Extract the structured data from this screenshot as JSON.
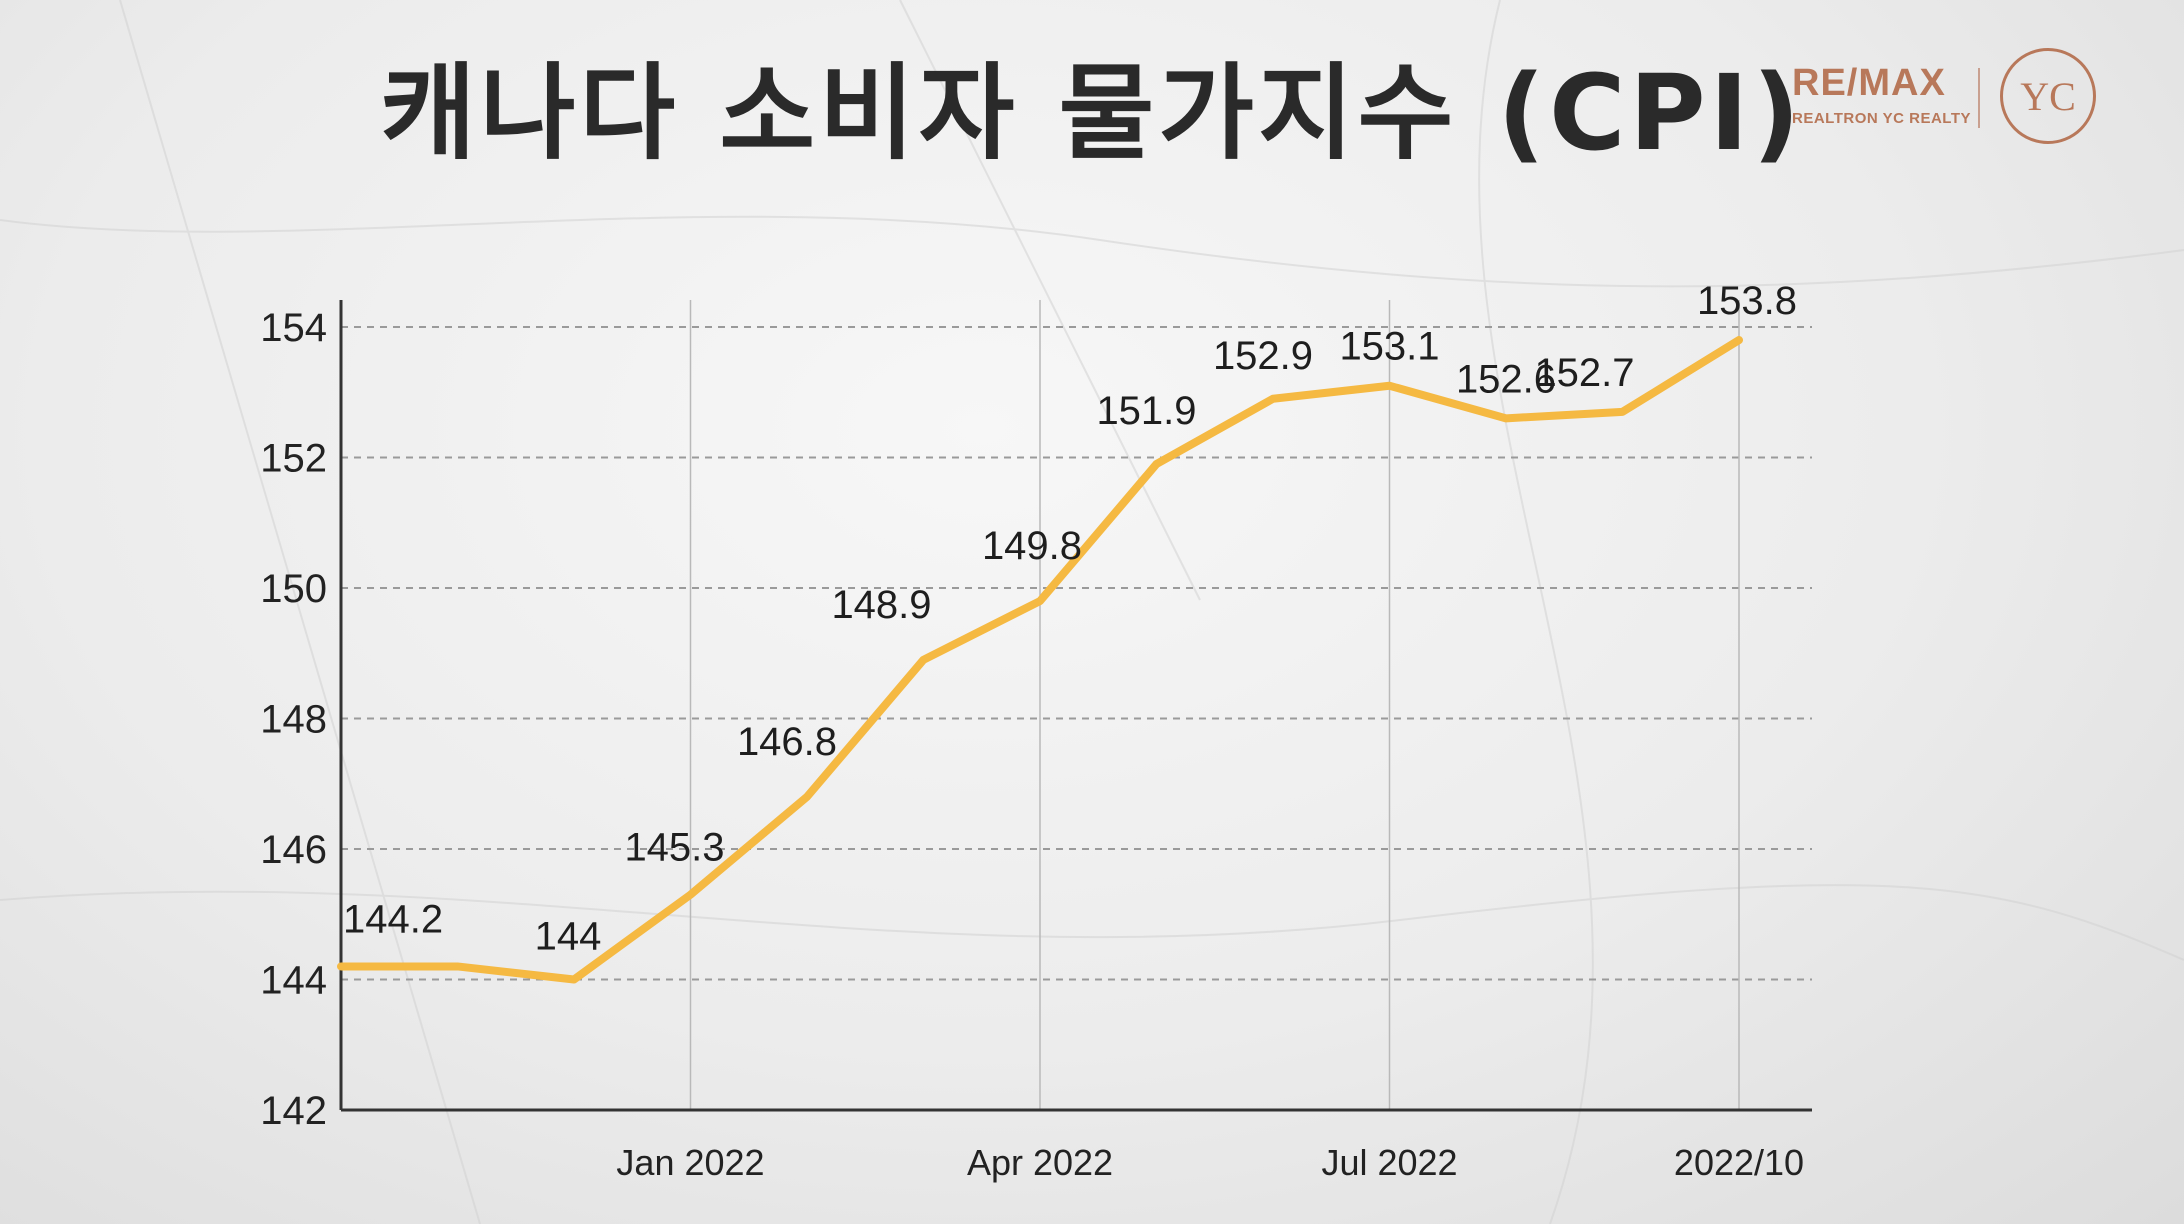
{
  "title": "캐나다 소비자 물가지수 (CPI)",
  "logo": {
    "brand": "RE/MAX",
    "sub": "REALTRON YC REALTY",
    "mark": "YC"
  },
  "colors": {
    "line": "#F5B942",
    "text": "#222222",
    "logo": "#B8785A"
  },
  "chart_data": {
    "type": "line",
    "title": "캐나다 소비자 물가지수 (CPI)",
    "xlabel": "",
    "ylabel": "",
    "x": [
      "2021-10",
      "2021-11",
      "2021-12",
      "2022-01",
      "2022-02",
      "2022-03",
      "2022-04",
      "2022-05",
      "2022-06",
      "2022-07",
      "2022-08",
      "2022-09",
      "2022-10"
    ],
    "series": [
      {
        "values": [
          144.2,
          144.2,
          144.0,
          145.3,
          146.8,
          148.9,
          149.8,
          151.9,
          152.9,
          153.1,
          152.6,
          152.7,
          153.8
        ]
      }
    ],
    "data_labels": [
      "144.2",
      "",
      "144",
      "145.3",
      "146.8",
      "148.9",
      "149.8",
      "151.9",
      "152.9",
      "153.1",
      "152.6",
      "152.7",
      "153.8"
    ],
    "ylim": [
      142,
      154.5
    ],
    "yticks": [
      142,
      144,
      146,
      148,
      150,
      152,
      154
    ],
    "xtick_labels": [
      {
        "x": "2022-01",
        "label": "Jan 2022"
      },
      {
        "x": "2022-04",
        "label": "Apr 2022"
      },
      {
        "x": "2022-07",
        "label": "Jul 2022"
      },
      {
        "x": "2022-10",
        "label": "2022/10"
      }
    ],
    "grid": {
      "horizontal": "dashed",
      "vertical": "solid"
    },
    "legend": "none"
  }
}
